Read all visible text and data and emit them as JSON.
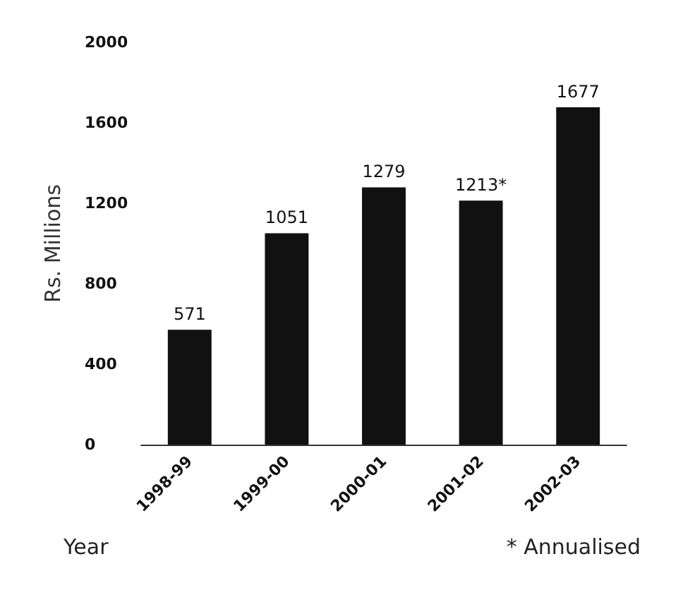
{
  "chart_data": {
    "type": "bar",
    "xlabel": "Year",
    "ylabel": "Rs. Millions",
    "annotations": [
      "* Annualised"
    ],
    "categories": [
      "1998-99",
      "1999-00",
      "2000-01",
      "2001-02",
      "2002-03"
    ],
    "values": [
      571,
      1051,
      1279,
      1213,
      1677
    ],
    "value_labels": [
      "571",
      "1051",
      "1279",
      "1213*",
      "1677"
    ],
    "color": "#111111",
    "ylim": [
      0,
      2000
    ],
    "yticks": [
      0,
      400,
      800,
      1200,
      1600,
      2000
    ],
    "grid": false
  }
}
